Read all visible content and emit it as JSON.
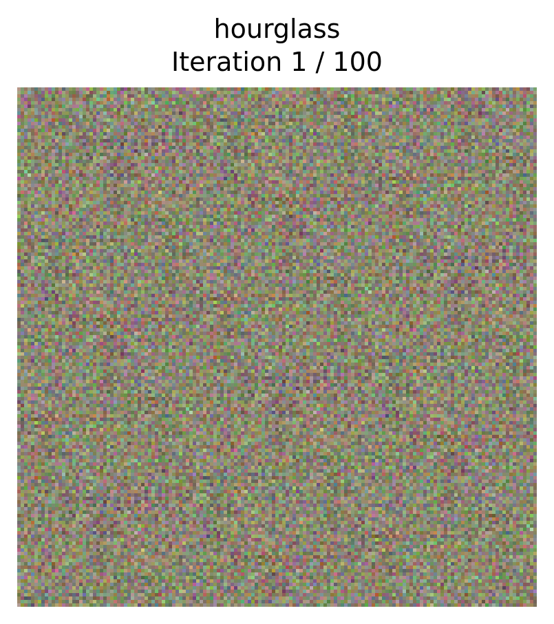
{
  "figure": {
    "title": "hourglass",
    "subtitle": "Iteration 1 / 100",
    "image_description": "random RGB noise image (untrained sample)",
    "noise_palette": {
      "mean_color": "#8a8670",
      "accent_colors": [
        "#5ad05a",
        "#c03a8a",
        "#3a3aa0",
        "#d0c05a",
        "#a03a3a",
        "#6ac0c0"
      ]
    }
  }
}
